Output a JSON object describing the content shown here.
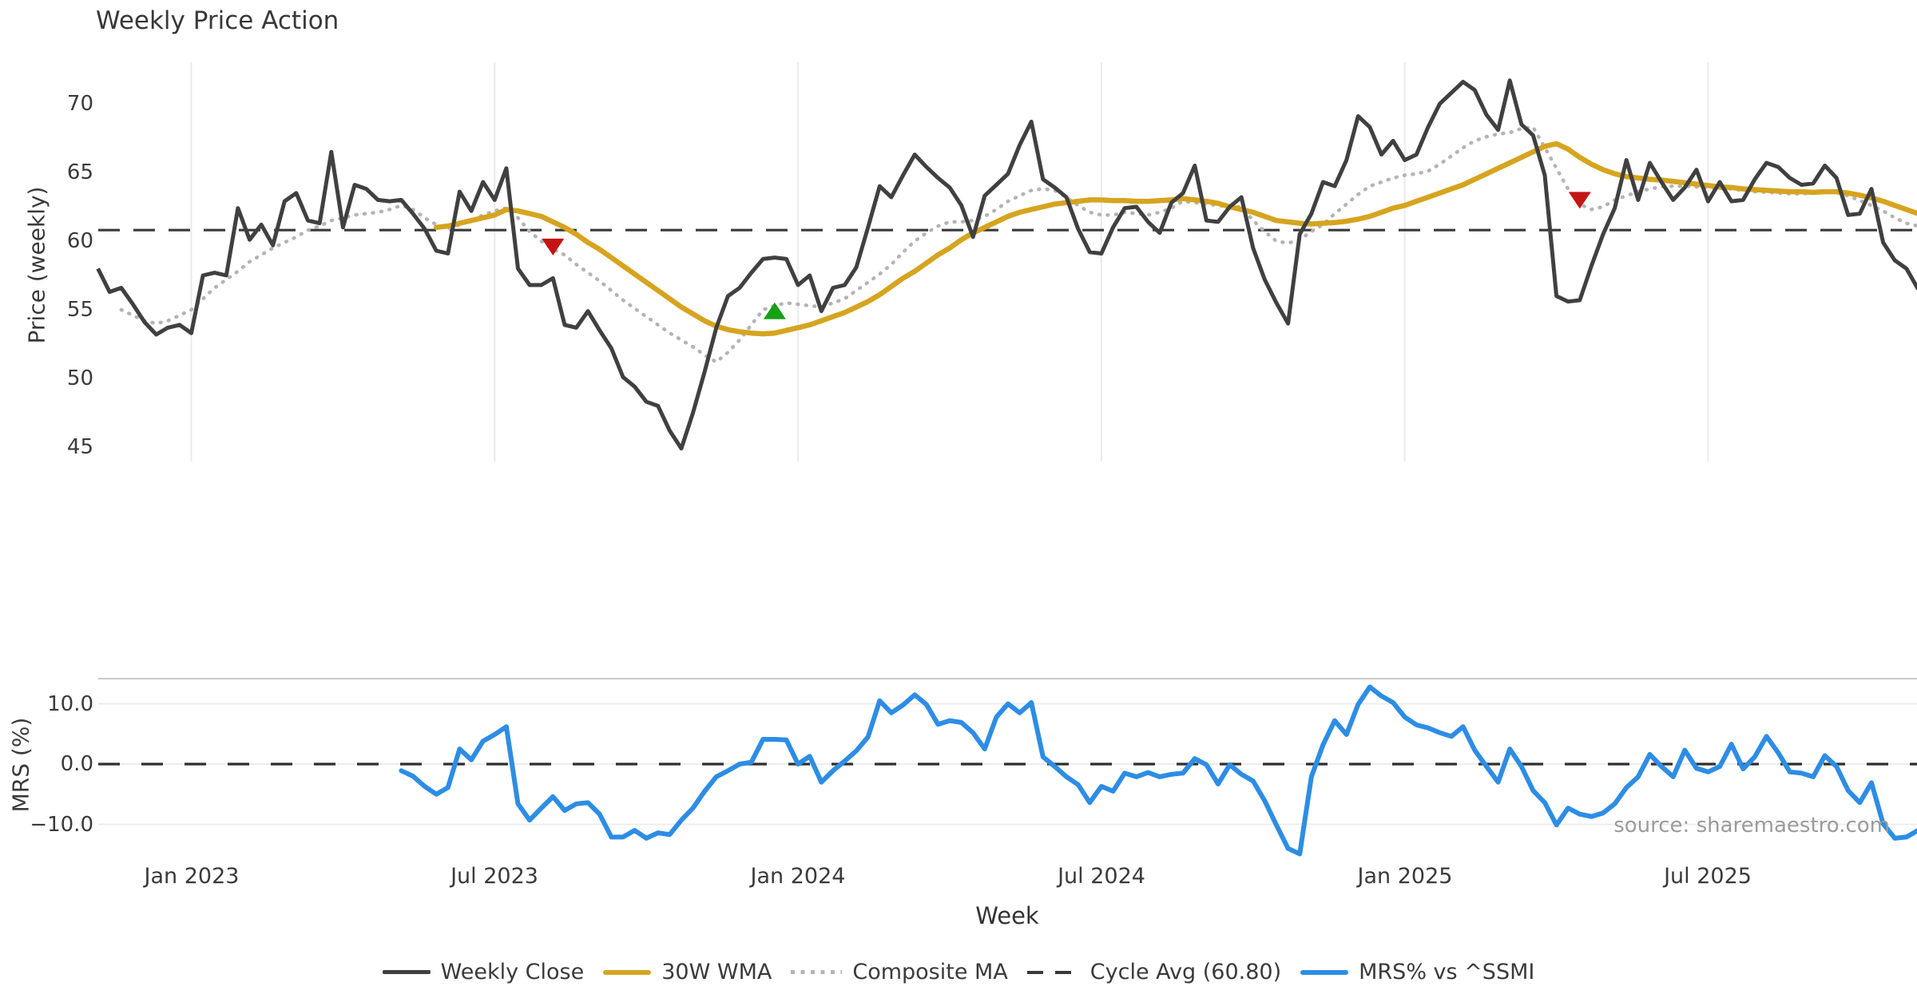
{
  "page": {
    "source_note": "source: sharemaestro.com"
  },
  "chart_data": {
    "type": "line",
    "title": "Weekly Price Action",
    "x_axis": {
      "label": "Week",
      "tick_labels": [
        "Jan 2023",
        "Jul 2023",
        "Jan 2024",
        "Jul 2024",
        "Jan 2025",
        "Jul 2025"
      ],
      "tick_weeks": [
        8,
        34,
        60,
        86,
        112,
        138
      ],
      "weeks_total": 157,
      "start_date_approx": "Nov 2022"
    },
    "panels": [
      {
        "id": "price",
        "ylabel": "Price (weekly)",
        "ytick_labels": [
          "70",
          "65",
          "60",
          "55",
          "50",
          "45"
        ],
        "yticks": [
          70,
          65,
          60,
          55,
          50,
          45
        ],
        "ylim": [
          43.8,
          73.4
        ],
        "grid": "vertical-only",
        "reference_line": {
          "name": "Cycle Avg",
          "value": 60.8,
          "style": "dashed",
          "color": "#3a3a3a"
        },
        "series": [
          {
            "name": "Weekly Close",
            "color": "#404040",
            "style": "solid",
            "start_week": 0,
            "values": [
              58.0,
              56.3,
              56.6,
              55.4,
              54.1,
              53.2,
              53.7,
              53.9,
              53.3,
              57.5,
              57.7,
              57.5,
              62.4,
              60.1,
              61.2,
              59.7,
              62.9,
              63.5,
              61.5,
              61.3,
              66.5,
              61.0,
              64.1,
              63.8,
              63.0,
              62.9,
              63.0,
              62.0,
              60.9,
              59.3,
              59.1,
              63.6,
              62.2,
              64.3,
              63.0,
              65.3,
              58.0,
              56.8,
              56.8,
              57.3,
              53.9,
              53.7,
              54.9,
              53.5,
              52.2,
              50.1,
              49.4,
              48.3,
              48.0,
              46.2,
              44.9,
              47.5,
              50.5,
              53.7,
              56.0,
              56.6,
              57.7,
              58.7,
              58.8,
              58.7,
              56.8,
              57.5,
              54.9,
              56.6,
              56.8,
              58.1,
              61.0,
              64.0,
              63.2,
              64.8,
              66.3,
              65.4,
              64.6,
              63.9,
              62.6,
              60.3,
              63.3,
              64.1,
              64.9,
              67.0,
              68.7,
              64.5,
              63.9,
              63.2,
              60.9,
              59.2,
              59.1,
              61.0,
              62.4,
              62.5,
              61.4,
              60.6,
              62.8,
              63.5,
              65.5,
              61.5,
              61.4,
              62.5,
              63.2,
              59.5,
              57.2,
              55.5,
              54.0,
              60.5,
              62.0,
              64.3,
              64.0,
              65.9,
              69.1,
              68.3,
              66.3,
              67.3,
              65.9,
              66.3,
              68.3,
              70.0,
              70.8,
              71.6,
              71.0,
              69.2,
              68.1,
              71.7,
              68.5,
              67.7,
              64.8,
              56.0,
              55.6,
              55.7,
              58.2,
              60.5,
              62.4,
              65.9,
              63.0,
              65.7,
              64.3,
              63.0,
              63.9,
              65.2,
              62.9,
              64.3,
              62.9,
              63.0,
              64.5,
              65.7,
              65.4,
              64.6,
              64.1,
              64.2,
              65.5,
              64.6,
              61.9,
              62.0,
              63.8,
              59.9,
              58.6,
              58.0,
              56.5
            ]
          },
          {
            "name": "30W WMA",
            "color": "#d6a41f",
            "style": "solid",
            "start_week": 29,
            "values": [
              61.0,
              61.1,
              61.3,
              61.5,
              61.7,
              61.9,
              62.3,
              62.2,
              62.0,
              61.8,
              61.4,
              61.0,
              60.5,
              59.9,
              59.4,
              58.8,
              58.2,
              57.6,
              57.0,
              56.4,
              55.8,
              55.2,
              54.7,
              54.2,
              53.8,
              53.55,
              53.4,
              53.3,
              53.25,
              53.3,
              53.5,
              53.7,
              53.9,
              54.2,
              54.5,
              54.8,
              55.2,
              55.6,
              56.1,
              56.7,
              57.3,
              57.8,
              58.4,
              59.0,
              59.5,
              60.1,
              60.6,
              61.0,
              61.4,
              61.8,
              62.1,
              62.3,
              62.5,
              62.7,
              62.8,
              62.9,
              63.0,
              63.0,
              62.95,
              62.95,
              62.9,
              62.9,
              62.95,
              63.0,
              63.1,
              63.0,
              62.9,
              62.75,
              62.5,
              62.3,
              62.1,
              61.8,
              61.5,
              61.4,
              61.3,
              61.25,
              61.3,
              61.35,
              61.45,
              61.6,
              61.8,
              62.1,
              62.4,
              62.6,
              62.9,
              63.2,
              63.5,
              63.8,
              64.1,
              64.5,
              64.9,
              65.3,
              65.7,
              66.1,
              66.5,
              66.9,
              67.1,
              66.7,
              66.1,
              65.6,
              65.2,
              64.9,
              64.7,
              64.6,
              64.5,
              64.45,
              64.35,
              64.25,
              64.15,
              64.05,
              63.95,
              63.9,
              63.8,
              63.75,
              63.7,
              63.65,
              63.6,
              63.6,
              63.55,
              63.6,
              63.6,
              63.5,
              63.35,
              63.15,
              62.9,
              62.6,
              62.3,
              62.0
            ]
          },
          {
            "name": "Composite MA",
            "color": "#b4b4b4",
            "style": "dotted",
            "start_week": 2,
            "values": [
              55.0,
              54.6,
              54.2,
              54.0,
              54.2,
              54.6,
              55.0,
              55.8,
              56.6,
              57.2,
              57.8,
              58.5,
              59.0,
              59.5,
              59.9,
              60.3,
              60.8,
              61.1,
              61.5,
              61.7,
              61.9,
              62.0,
              62.1,
              62.3,
              62.6,
              62.3,
              61.7,
              61.2,
              60.9,
              61.2,
              61.5,
              61.9,
              62.2,
              62.4,
              61.7,
              60.7,
              60.0,
              59.4,
              59.0,
              58.3,
              57.7,
              57.1,
              56.4,
              55.7,
              55.1,
              54.5,
              53.9,
              53.3,
              52.8,
              52.3,
              51.7,
              51.2,
              51.9,
              52.8,
              53.9,
              55.0,
              55.3,
              55.5,
              55.4,
              55.3,
              55.2,
              55.5,
              55.8,
              56.4,
              57.0,
              57.6,
              58.3,
              59.2,
              60.0,
              60.6,
              61.1,
              61.4,
              61.4,
              61.5,
              61.8,
              62.3,
              62.9,
              63.3,
              63.7,
              63.8,
              63.7,
              63.2,
              62.6,
              62.1,
              61.9,
              61.9,
              62.1,
              62.0,
              61.9,
              62.1,
              62.4,
              62.9,
              62.8,
              62.7,
              62.6,
              62.5,
              62.5,
              61.5,
              60.7,
              60.0,
              59.85,
              60.1,
              60.7,
              61.2,
              62.0,
              62.7,
              63.4,
              64.0,
              64.3,
              64.6,
              64.8,
              64.9,
              65.1,
              65.6,
              66.2,
              66.8,
              67.3,
              67.6,
              67.8,
              67.9,
              68.2,
              68.3,
              66.8,
              65.3,
              63.8,
              62.7,
              62.3,
              62.5,
              63.0,
              63.3,
              63.6,
              63.8,
              63.95,
              64.0,
              64.0,
              63.95,
              63.9,
              63.85,
              63.8,
              63.7,
              63.6,
              63.55,
              63.5,
              63.45,
              63.45,
              63.5,
              63.65,
              63.55,
              63.3,
              62.95,
              62.6,
              62.2,
              61.7,
              61.3,
              61.1
            ]
          }
        ],
        "markers": [
          {
            "shape": "triangle-down",
            "color": "#c41414",
            "week": 39,
            "value": 59.6
          },
          {
            "shape": "triangle-up",
            "color": "#16a016",
            "week": 58,
            "value": 54.9
          },
          {
            "shape": "triangle-down",
            "color": "#c41414",
            "week": 127,
            "value": 63.0
          }
        ]
      },
      {
        "id": "mrs",
        "ylabel": "MRS (%)",
        "ytick_labels": [
          "10.0",
          "0.0",
          "−10.0"
        ],
        "yticks": [
          10,
          0,
          -10
        ],
        "ylim": [
          -15.5,
          14.2
        ],
        "grid": "horizontal-only",
        "reference_line": {
          "name": "Zero",
          "value": 0.0,
          "style": "dashed",
          "color": "#2e2e2e"
        },
        "series": [
          {
            "name": "MRS% vs ^SSMI",
            "color": "#2d8de4",
            "style": "solid",
            "start_week": 26,
            "values": [
              -1.1,
              -2.0,
              -3.7,
              -5.0,
              -3.9,
              2.5,
              0.7,
              3.8,
              4.9,
              6.2,
              -6.6,
              -9.3,
              -7.3,
              -5.4,
              -7.7,
              -6.6,
              -6.4,
              -8.3,
              -12.1,
              -12.1,
              -11.0,
              -12.3,
              -11.4,
              -11.7,
              -9.3,
              -7.3,
              -4.5,
              -2.1,
              -1.1,
              0.0,
              0.3,
              4.1,
              4.1,
              4.0,
              0.0,
              1.3,
              -3.0,
              -1.1,
              0.5,
              2.2,
              4.5,
              10.5,
              8.5,
              9.8,
              11.5,
              9.9,
              6.6,
              7.2,
              6.9,
              5.2,
              2.5,
              7.8,
              10.0,
              8.5,
              10.2,
              1.2,
              -0.4,
              -2.1,
              -3.4,
              -6.4,
              -3.7,
              -4.5,
              -1.5,
              -2.1,
              -1.4,
              -2.1,
              -1.7,
              -1.5,
              0.9,
              -0.1,
              -3.3,
              -0.1,
              -1.7,
              -2.8,
              -6.1,
              -10.1,
              -14.0,
              -14.9,
              -2.1,
              3.2,
              7.2,
              4.9,
              9.9,
              12.8,
              11.3,
              10.2,
              7.8,
              6.5,
              6.0,
              5.2,
              4.6,
              6.2,
              2.3,
              -0.4,
              -3.0,
              2.5,
              -0.4,
              -4.4,
              -6.4,
              -10.1,
              -7.3,
              -8.3,
              -8.7,
              -8.1,
              -6.6,
              -3.9,
              -2.1,
              1.6,
              -0.4,
              -2.1,
              2.3,
              -0.7,
              -1.3,
              -0.4,
              3.3,
              -0.8,
              1.2,
              4.6,
              1.9,
              -1.3,
              -1.5,
              -2.1,
              1.4,
              -0.4,
              -4.4,
              -6.4,
              -3.1,
              -9.9,
              -12.3,
              -12.1,
              -11.0
            ]
          }
        ]
      }
    ],
    "legend": {
      "position": "bottom",
      "items": [
        {
          "label": "Weekly Close",
          "swatch": "solid-dark"
        },
        {
          "label": "30W WMA",
          "swatch": "solid-gold"
        },
        {
          "label": "Composite MA",
          "swatch": "dotted-gray"
        },
        {
          "label": "Cycle Avg (60.80)",
          "swatch": "dashed-dark"
        },
        {
          "label": "MRS% vs ^SSMI",
          "swatch": "solid-blue"
        }
      ]
    }
  }
}
